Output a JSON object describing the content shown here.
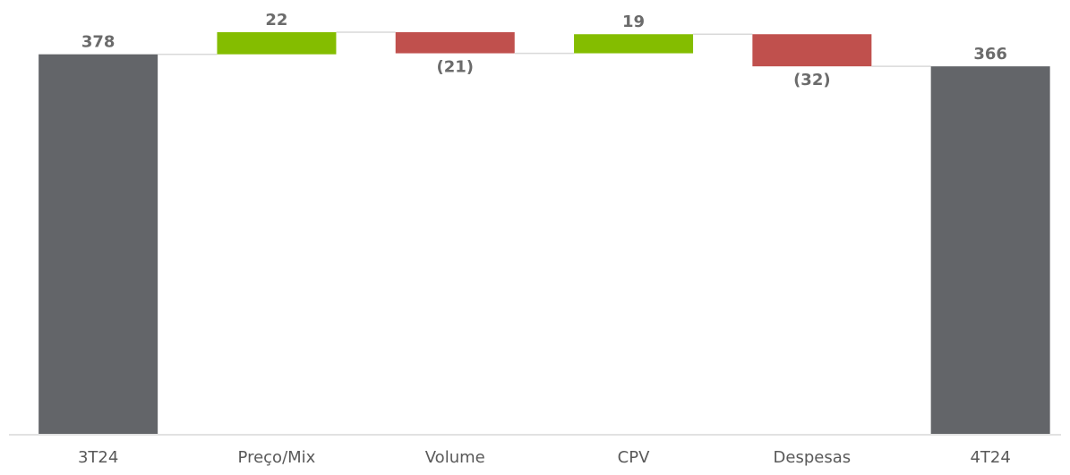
{
  "chart_data": {
    "type": "waterfall",
    "categories": [
      "3T24",
      "Preço/Mix",
      "Volume",
      "CPV",
      "Despesas",
      "4T24"
    ],
    "values": [
      378,
      22,
      -21,
      19,
      -32,
      366
    ],
    "value_labels": [
      "378",
      "22",
      "(21)",
      "19",
      "(32)",
      "366"
    ],
    "measure": [
      "absolute",
      "relative",
      "relative",
      "relative",
      "relative",
      "absolute"
    ],
    "colors": {
      "total": "#636569",
      "increase": "#84bd00",
      "decrease": "#c0504d"
    }
  }
}
